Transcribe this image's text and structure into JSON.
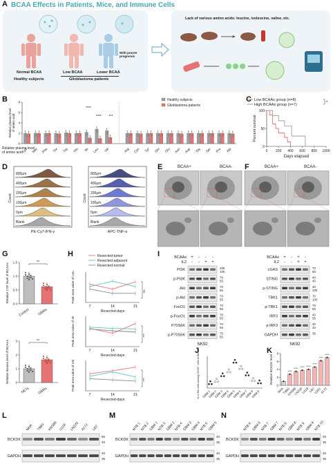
{
  "panels": {
    "A": "A",
    "B": "B",
    "C": "C",
    "D": "D",
    "E": "E",
    "F": "F",
    "G": "G",
    "H": "H",
    "I": "I",
    "J": "J",
    "K": "K",
    "L": "L",
    "M": "M",
    "N": "N"
  },
  "A": {
    "banner": "BCAA Effects in Patients, Mice, and Immune Cells",
    "normal": "Normal BCAA",
    "low": "Low BCAA",
    "lower": "Lower BCAA",
    "poor": "With poorer prognosis",
    "healthy": "Healthy subjects",
    "gbm": "Glioblastoma patients",
    "lack": "Lack of various amino acids: leucine, isoleucine, valine, etc.",
    "colors": {
      "normal": "#e9a39a",
      "low": "#f1b8b0",
      "lower": "#a9cde6",
      "dish": "#bfe3e8",
      "accent": "#4aa7b5"
    }
  },
  "B": {
    "ylabel": "Relative plasma level\nof amino acid",
    "legend": [
      "Healthy subjects",
      "Glioblastoma patients"
    ],
    "stars": [
      "****",
      "****",
      "***"
    ],
    "aa1": [
      "Lys",
      "Met",
      "Phe",
      "Thr",
      "Trp",
      "His",
      "Ile",
      "Leu",
      "Val"
    ],
    "aa2": [
      "Arg",
      "Cys",
      "Tyr",
      "Gln",
      "Glu",
      "Asn",
      "Asp",
      "Gly",
      "Ser",
      "Pro",
      "Ala"
    ],
    "yticks": [
      "0",
      "2",
      "4",
      "6",
      "8"
    ],
    "chart_data": {
      "type": "bar",
      "ylim": [
        0,
        8
      ],
      "series": [
        {
          "name": "Healthy subjects",
          "values": [
            2.0,
            2.0,
            2.0,
            2.0,
            2.1,
            2.0,
            2.2,
            2.8,
            2.5,
            null,
            2.0,
            2.0,
            2.0,
            2.0,
            2.0,
            2.0,
            2.0,
            2.0,
            2.0,
            2.0,
            2.0
          ]
        },
        {
          "name": "Glioblastoma patients",
          "values": [
            1.9,
            2.0,
            2.0,
            1.9,
            2.0,
            2.0,
            1.1,
            1.0,
            1.2,
            null,
            2.0,
            1.9,
            2.0,
            2.0,
            2.0,
            1.9,
            2.0,
            2.0,
            2.0,
            2.0,
            1.9
          ]
        }
      ],
      "colors": [
        "#9e9e9e",
        "#e57373"
      ]
    }
  },
  "C": {
    "legend": [
      "Low BCAAs group (n=8)",
      "High BCAAs group (n=7)"
    ],
    "star": "*",
    "ylabel": "Percent survival",
    "xlabel": "Days elapsed",
    "xticks": [
      "0",
      "200",
      "400",
      "600",
      "800",
      "1000"
    ],
    "yticks": [
      "0",
      "50",
      "100"
    ],
    "chart_data": {
      "type": "line",
      "xlim": [
        0,
        1000
      ],
      "ylim": [
        0,
        100
      ],
      "series": [
        {
          "name": "Low BCAAs group (n=8)",
          "x": [
            0,
            50,
            100,
            150,
            200,
            300,
            350,
            400
          ],
          "y": [
            100,
            87.5,
            62.5,
            50,
            37.5,
            25,
            12.5,
            0
          ]
        },
        {
          "name": "High BCAAs group (n=7)",
          "x": [
            0,
            100,
            200,
            300,
            420,
            650
          ],
          "y": [
            100,
            85.7,
            71.4,
            57.1,
            28.6,
            0
          ]
        }
      ],
      "colors": [
        "#e57373",
        "#9e9e9e"
      ]
    }
  },
  "D": {
    "rows": [
      "800μm",
      "400μm",
      "200μm",
      "100μm",
      "0μm",
      "Blank"
    ],
    "left_x": "PE-Cy7-IFN-γ",
    "right_x": "APC-TNF-α",
    "ylabel": "Count"
  },
  "E": {
    "c1": "BCAA+",
    "c2": "BCAA-"
  },
  "F": {
    "c1": "BCAA+",
    "c2": "BCAA-"
  },
  "G": {
    "top_ylabel": "Relative CSF level of BCAAs",
    "top_cats": [
      "Control",
      "GBMs"
    ],
    "top_sig": "**",
    "top_yticks": [
      "0.0",
      "0.5",
      "1.0",
      "1.5"
    ],
    "bot_ylabel": "Relative tissues level of BCAAs",
    "bot_cats": [
      "NETs",
      "GBMs"
    ],
    "bot_sig": "**",
    "bot_yticks": [
      "0",
      "1",
      "2",
      "3"
    ],
    "chart_data": [
      {
        "type": "bar",
        "categories": [
          "Control",
          "GBMs"
        ],
        "values": [
          1.0,
          0.62
        ],
        "ylim": [
          0,
          1.5
        ]
      },
      {
        "type": "bar",
        "categories": [
          "NETs",
          "GBMs"
        ],
        "values": [
          1.0,
          1.65
        ],
        "ylim": [
          0,
          3
        ]
      }
    ]
  },
  "H": {
    "legend": [
      "Resected-tumor",
      "Resected-adjacent",
      "Resected-normal"
    ],
    "ylabels": [
      "Peak area value of Leu",
      "Peak area value of Ile",
      "Peak area value of Val"
    ],
    "xlabel": "Resected-days",
    "xticks": [
      "7",
      "14",
      "21"
    ],
    "sig": [
      "ns",
      "***",
      "***"
    ],
    "chart_data": [
      {
        "type": "line",
        "x": [
          7,
          14,
          21
        ],
        "series": [
          {
            "name": "Resected-tumor",
            "values": [
              3.0,
              2.2,
              3.4
            ]
          },
          {
            "name": "Resected-adjacent",
            "values": [
              2.6,
              3.5,
              2.6
            ]
          },
          {
            "name": "Resected-normal",
            "values": [
              2.2,
              1.5,
              1.5
            ]
          }
        ]
      },
      {
        "type": "line",
        "x": [
          7,
          14,
          21
        ],
        "series": [
          {
            "name": "Resected-tumor",
            "values": [
              3.0,
              2.2,
              3.8
            ]
          },
          {
            "name": "Resected-adjacent",
            "values": [
              3.2,
              3.0,
              2.9
            ]
          },
          {
            "name": "Resected-normal",
            "values": [
              2.9,
              2.6,
              2.4
            ]
          }
        ]
      },
      {
        "type": "line",
        "x": [
          7,
          14,
          21
        ],
        "series": [
          {
            "name": "Resected-tumor",
            "values": [
              2.8,
              3.3,
              3.9
            ]
          },
          {
            "name": "Resected-adjacent",
            "values": [
              2.4,
              3.1,
              2.3
            ]
          },
          {
            "name": "Resected-normal",
            "values": [
              2.0,
              1.8,
              1.6
            ]
          }
        ]
      }
    ],
    "colors": [
      "#e57373",
      "#5bc4c4",
      "#888888"
    ]
  },
  "I": {
    "labels_left": [
      "PI3K",
      "p-PI3K",
      "Akt",
      "p-Akt",
      "FoxO1",
      "p-FoxO1",
      "P70S6K",
      "p-P70S6K"
    ],
    "mw_left": [
      "100",
      "100",
      "70",
      "55",
      "70",
      "55",
      "70",
      "55",
      "70",
      "55",
      "70",
      "55",
      "70",
      "55",
      "70",
      "55"
    ],
    "labels_right": [
      "cGAS",
      "STING",
      "p-STING",
      "TBK1",
      "p-TBK1",
      "IRF3",
      "p-IRF3",
      "GAPDH"
    ],
    "mw_right": [
      "70",
      "55",
      "40",
      "40",
      "40",
      "100",
      "70",
      "100",
      "70",
      "55",
      "40",
      "55",
      "40",
      "40",
      "35"
    ],
    "bcaas": "BCAAs",
    "il2": "IL2",
    "left_bcaas": [
      "+",
      "-",
      "-",
      "-"
    ],
    "left_il2": [
      "-",
      "-",
      "+",
      "+"
    ],
    "right_bcaas": [
      "+",
      "-",
      "+",
      "-"
    ],
    "right_il2": [
      "-",
      "-",
      "+",
      "+"
    ],
    "cell": "NK92"
  },
  "J": {
    "ylabel": "% of NK cells among CD45⁺ cells in the tumor",
    "cats": [
      "GBM 1",
      "GBM 2",
      "GBM 3",
      "GBM 4",
      "GBM 5",
      "GBM 6",
      "GBM 7",
      "GBM 8",
      "GBM 9"
    ],
    "chart_data": {
      "type": "scatter",
      "categories": [
        "GBM 1",
        "GBM 2",
        "GBM 3",
        "GBM 4",
        "GBM 5",
        "GBM 6",
        "GBM 7",
        "GBM 8",
        "GBM 9"
      ],
      "values": [
        0.5,
        0.8,
        1.5,
        2.0,
        3.2,
        2.4,
        1.6,
        0.9,
        0.6
      ]
    }
  },
  "K": {
    "ylabel": "Relative BCKDK level",
    "cats": [
      "NHA",
      "T98G",
      "KNS89",
      "LN229",
      "U118",
      "U87",
      "U251",
      "A172"
    ],
    "stars": [
      "",
      "****",
      "****",
      "****",
      "****",
      "****",
      "****",
      "****"
    ],
    "yticks": [
      "0",
      "2",
      "4",
      "6",
      "8"
    ],
    "chart_data": {
      "type": "bar",
      "categories": [
        "NHA",
        "T98G",
        "KNS89",
        "LN229",
        "U118",
        "U87",
        "U251",
        "A172"
      ],
      "values": [
        1.0,
        2.8,
        3.5,
        3.8,
        4.0,
        4.6,
        6.2,
        7.0
      ],
      "ylim": [
        0,
        8
      ]
    }
  },
  "L": {
    "lanes": [
      "NHA",
      "T98G",
      "KNS89",
      "U118",
      "LN229",
      "A172",
      "U87"
    ],
    "rows": [
      "BCKDK",
      "GAPDH"
    ],
    "mw": [
      "55",
      "40",
      "40",
      "35"
    ]
  },
  "M": {
    "lanes": [
      "NTB 1",
      "NTB 2",
      "GBM 1",
      "NTB 3",
      "GBM 2",
      "NTB 4",
      "GBM 3",
      "GBM 4",
      "NTB 5",
      "GBM 5"
    ],
    "rows": [
      "BCKDK",
      "GAPDH"
    ],
    "mw": [
      "40",
      "35",
      "40",
      "35"
    ]
  },
  "N": {
    "lanes": [
      "NTB 6",
      "GBM 6",
      "NTB 7",
      "GBM 7",
      "NTB 8",
      "GBM 8",
      "NTB 9",
      "GBM 9",
      "NTB 10"
    ],
    "rows": [
      "BCKDK",
      "GAPDH"
    ],
    "mw": [
      "40",
      "35",
      "40",
      "35"
    ]
  }
}
